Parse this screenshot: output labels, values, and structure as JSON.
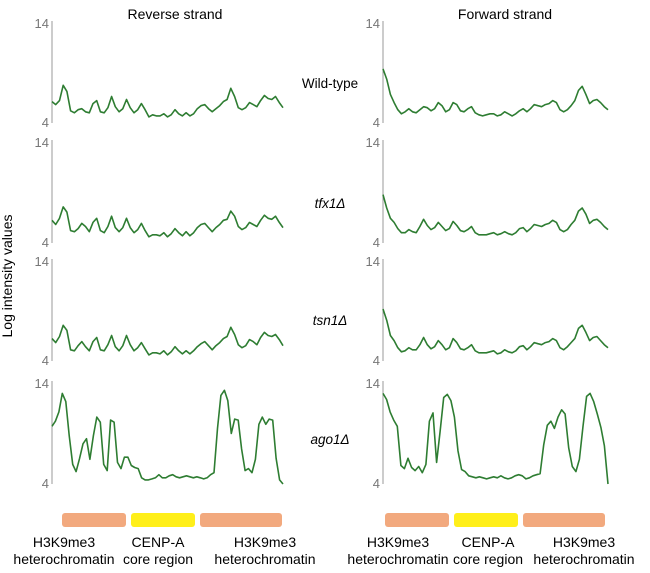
{
  "ylabel": "Log intensity values",
  "columns": [
    "Reverse strand",
    "Forward strand"
  ],
  "genotypes": [
    {
      "label": "Wild-type",
      "italic": false
    },
    {
      "label": "tfx1Δ",
      "italic": true
    },
    {
      "label": "tsn1Δ",
      "italic": true
    },
    {
      "label": "ago1Δ",
      "italic": true
    }
  ],
  "regions": [
    {
      "lines": [
        "H3K9me3",
        "heterochromatin"
      ],
      "color": "#F2A97E"
    },
    {
      "lines": [
        "CENP-A",
        "core region"
      ],
      "color": "#FFEF1A"
    },
    {
      "lines": [
        "H3K9me3",
        "heterochromatin"
      ],
      "color": "#F2A97E"
    }
  ],
  "line_color": "#2E7D32",
  "chart_data": {
    "type": "line",
    "ylabel": "Log intensity values",
    "ylim": [
      4,
      14
    ],
    "yticks": [
      4,
      14
    ],
    "panels": [
      {
        "column": "Reverse strand",
        "genotype": "Wild-type",
        "values": [
          6.1,
          5.8,
          6.2,
          7.7,
          7.1,
          5.2,
          5.0,
          5.3,
          5.4,
          5.1,
          5.0,
          5.9,
          6.2,
          5.1,
          5.0,
          5.5,
          6.6,
          5.6,
          5.1,
          5.4,
          6.3,
          5.5,
          5.0,
          5.3,
          5.9,
          5.3,
          4.6,
          4.8,
          4.7,
          4.7,
          4.9,
          4.6,
          4.8,
          5.3,
          4.9,
          4.7,
          5.0,
          4.7,
          4.9,
          5.4,
          5.7,
          5.8,
          5.4,
          5.1,
          5.4,
          5.7,
          6.1,
          6.3,
          7.4,
          6.6,
          5.5,
          5.3,
          5.5,
          6.0,
          5.8,
          5.6,
          6.2,
          6.7,
          6.4,
          6.3,
          6.6,
          6.0,
          5.5
        ]
      },
      {
        "column": "Reverse strand",
        "genotype": "tfx1Δ",
        "values": [
          6.2,
          5.8,
          6.4,
          7.5,
          7.0,
          5.2,
          5.1,
          5.4,
          5.9,
          5.6,
          5.1,
          6.0,
          6.4,
          5.2,
          5.0,
          5.6,
          6.6,
          5.5,
          5.1,
          5.5,
          6.4,
          5.5,
          5.0,
          5.3,
          5.9,
          5.2,
          4.6,
          4.8,
          4.8,
          4.7,
          5.0,
          4.6,
          4.9,
          5.4,
          5.0,
          4.7,
          5.1,
          4.7,
          5.0,
          5.5,
          5.8,
          5.9,
          5.5,
          5.1,
          5.5,
          5.8,
          6.2,
          6.3,
          7.1,
          6.6,
          5.6,
          5.3,
          5.5,
          6.0,
          5.8,
          5.6,
          6.2,
          6.7,
          6.4,
          6.3,
          6.6,
          6.0,
          5.5
        ]
      },
      {
        "column": "Reverse strand",
        "genotype": "tsn1Δ",
        "values": [
          6.2,
          5.8,
          6.4,
          7.5,
          7.0,
          5.1,
          5.0,
          5.5,
          5.9,
          5.4,
          5.0,
          5.9,
          6.3,
          5.1,
          5.0,
          5.6,
          6.5,
          5.4,
          5.0,
          5.5,
          6.5,
          5.6,
          5.0,
          5.3,
          5.8,
          5.2,
          4.6,
          4.8,
          4.8,
          4.7,
          5.0,
          4.6,
          4.9,
          5.4,
          5.0,
          4.7,
          5.0,
          4.7,
          5.0,
          5.4,
          5.7,
          5.9,
          5.5,
          5.1,
          5.5,
          5.8,
          6.2,
          6.4,
          7.3,
          6.6,
          5.6,
          5.3,
          5.5,
          6.1,
          5.9,
          5.6,
          6.3,
          6.8,
          6.5,
          6.4,
          6.6,
          6.1,
          5.5
        ]
      },
      {
        "column": "Reverse strand",
        "genotype": "ago1Δ",
        "values": [
          9.6,
          10.1,
          11.0,
          12.8,
          12.0,
          8.7,
          5.9,
          5.2,
          6.5,
          7.9,
          8.4,
          6.4,
          8.7,
          10.5,
          10.0,
          5.9,
          5.3,
          10.2,
          10.0,
          6.1,
          5.5,
          6.6,
          6.6,
          5.8,
          5.6,
          5.5,
          4.6,
          4.4,
          4.4,
          4.5,
          4.6,
          4.9,
          4.6,
          4.6,
          4.8,
          4.9,
          4.7,
          4.6,
          4.7,
          4.8,
          4.7,
          4.6,
          4.7,
          4.6,
          4.5,
          4.6,
          4.9,
          5.1,
          9.4,
          12.6,
          13.1,
          12.1,
          8.9,
          10.3,
          10.2,
          7.4,
          5.3,
          5.5,
          5.1,
          6.4,
          9.8,
          10.5,
          9.8,
          10.3,
          10.2,
          6.5,
          4.4,
          4.0
        ]
      },
      {
        "column": "Forward strand",
        "genotype": "Wild-type",
        "values": [
          9.3,
          8.3,
          6.8,
          6.0,
          5.3,
          4.9,
          5.1,
          5.4,
          5.1,
          5.0,
          5.3,
          5.6,
          5.5,
          5.2,
          5.4,
          6.0,
          5.7,
          5.1,
          5.3,
          6.0,
          5.8,
          5.2,
          5.1,
          5.4,
          5.6,
          5.0,
          4.8,
          4.7,
          4.8,
          4.9,
          4.9,
          4.7,
          4.8,
          5.1,
          4.9,
          4.7,
          4.9,
          5.2,
          5.4,
          5.1,
          5.4,
          5.8,
          5.7,
          5.6,
          5.8,
          5.9,
          6.2,
          6.0,
          5.3,
          5.1,
          5.3,
          5.7,
          6.2,
          7.2,
          7.6,
          6.8,
          5.9,
          6.2,
          6.3,
          6.0,
          5.6,
          5.3
        ]
      },
      {
        "column": "Forward strand",
        "genotype": "tfx1Δ",
        "values": [
          8.7,
          7.4,
          6.4,
          6.0,
          5.4,
          5.0,
          5.0,
          5.3,
          5.1,
          5.0,
          5.6,
          6.3,
          5.7,
          5.3,
          5.5,
          6.0,
          5.6,
          5.2,
          5.4,
          6.1,
          5.7,
          5.2,
          5.1,
          5.3,
          5.6,
          5.0,
          4.8,
          4.8,
          4.8,
          4.9,
          5.0,
          4.8,
          4.9,
          5.1,
          4.9,
          4.8,
          5.0,
          5.4,
          5.5,
          5.1,
          5.4,
          5.8,
          5.7,
          5.6,
          5.8,
          5.9,
          6.2,
          6.0,
          5.3,
          5.1,
          5.3,
          5.8,
          6.2,
          7.1,
          7.4,
          6.8,
          5.9,
          6.2,
          6.3,
          6.0,
          5.6,
          5.3
        ]
      },
      {
        "column": "Forward strand",
        "genotype": "tsn1Δ",
        "values": [
          9.1,
          8.0,
          6.5,
          6.0,
          5.3,
          4.9,
          5.0,
          5.3,
          5.1,
          5.1,
          5.6,
          6.3,
          5.6,
          5.2,
          5.4,
          6.0,
          5.6,
          5.1,
          5.3,
          6.2,
          5.8,
          5.2,
          5.1,
          5.3,
          5.6,
          5.0,
          4.8,
          4.8,
          4.8,
          4.9,
          5.0,
          4.7,
          4.8,
          5.1,
          4.9,
          4.8,
          5.0,
          5.4,
          5.5,
          5.1,
          5.4,
          5.8,
          5.7,
          5.6,
          5.8,
          5.9,
          6.2,
          6.0,
          5.3,
          5.1,
          5.4,
          5.8,
          6.2,
          7.2,
          7.5,
          6.8,
          6.0,
          6.3,
          6.4,
          6.0,
          5.6,
          5.3
        ]
      },
      {
        "column": "Forward strand",
        "genotype": "ago1Δ",
        "values": [
          12.8,
          12.2,
          11.0,
          10.2,
          9.6,
          5.8,
          5.5,
          6.5,
          5.6,
          5.3,
          5.7,
          5.1,
          5.9,
          10.1,
          10.9,
          6.1,
          9.1,
          12.4,
          12.7,
          12.1,
          10.5,
          7.2,
          5.4,
          5.2,
          4.8,
          4.7,
          4.6,
          4.7,
          4.6,
          4.5,
          4.6,
          4.7,
          4.6,
          4.8,
          4.6,
          4.5,
          4.6,
          4.8,
          4.9,
          4.8,
          4.5,
          4.6,
          4.8,
          4.9,
          5.0,
          7.8,
          9.7,
          10.1,
          9.4,
          10.5,
          11.2,
          10.8,
          7.5,
          5.7,
          5.2,
          6.4,
          9.6,
          12.5,
          12.8,
          12.0,
          10.8,
          9.5,
          7.7,
          4.0
        ]
      }
    ]
  }
}
